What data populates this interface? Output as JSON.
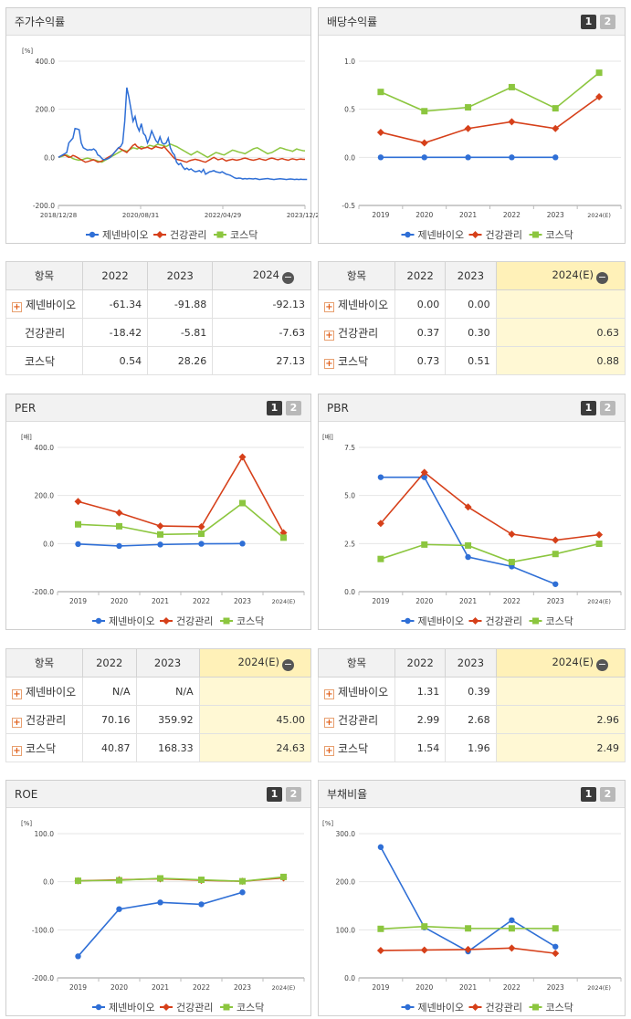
{
  "panels": {
    "stock": {
      "title": "주가수익률",
      "unit": "[%]"
    },
    "div": {
      "title": "배당수익률",
      "unit": ""
    },
    "per": {
      "title": "PER",
      "unit": "[배]"
    },
    "pbr": {
      "title": "PBR",
      "unit": "[배]"
    },
    "roe": {
      "title": "ROE",
      "unit": "[%]"
    },
    "debt": {
      "title": "부채비율",
      "unit": "[%]"
    }
  },
  "buttons": {
    "one": "1",
    "two": "2"
  },
  "legend": [
    "제넨바이오",
    "건강관리",
    "코스닥"
  ],
  "colors": {
    "blue": "#2f6fd6",
    "red": "#d6401a",
    "green": "#8cc63f"
  },
  "tables": {
    "stock": {
      "header": [
        "항목",
        "2022",
        "2023",
        "2024"
      ],
      "rows": [
        {
          "label": "제넨바이오",
          "plus": true,
          "values": [
            "-61.34",
            "-91.88",
            "-92.13"
          ]
        },
        {
          "label": "건강관리",
          "plus": false,
          "values": [
            "-18.42",
            "-5.81",
            "-7.63"
          ]
        },
        {
          "label": "코스닥",
          "plus": false,
          "values": [
            "0.54",
            "28.26",
            "27.13"
          ]
        }
      ]
    },
    "div": {
      "header": [
        "항목",
        "2022",
        "2023",
        "2024(E)"
      ],
      "rows": [
        {
          "label": "제넨바이오",
          "plus": true,
          "values": [
            "0.00",
            "0.00",
            ""
          ]
        },
        {
          "label": "건강관리",
          "plus": true,
          "values": [
            "0.37",
            "0.30",
            "0.63"
          ]
        },
        {
          "label": "코스닥",
          "plus": true,
          "values": [
            "0.73",
            "0.51",
            "0.88"
          ]
        }
      ]
    },
    "per": {
      "header": [
        "항목",
        "2022",
        "2023",
        "2024(E)"
      ],
      "rows": [
        {
          "label": "제넨바이오",
          "plus": true,
          "values": [
            "N/A",
            "N/A",
            ""
          ]
        },
        {
          "label": "건강관리",
          "plus": true,
          "values": [
            "70.16",
            "359.92",
            "45.00"
          ]
        },
        {
          "label": "코스닥",
          "plus": true,
          "values": [
            "40.87",
            "168.33",
            "24.63"
          ]
        }
      ]
    },
    "pbr": {
      "header": [
        "항목",
        "2022",
        "2023",
        "2024(E)"
      ],
      "rows": [
        {
          "label": "제넨바이오",
          "plus": true,
          "values": [
            "1.31",
            "0.39",
            ""
          ]
        },
        {
          "label": "건강관리",
          "plus": true,
          "values": [
            "2.99",
            "2.68",
            "2.96"
          ]
        },
        {
          "label": "코스닥",
          "plus": true,
          "values": [
            "1.54",
            "1.96",
            "2.49"
          ]
        }
      ]
    }
  },
  "chart_data": [
    {
      "id": "stock",
      "type": "line",
      "title": "주가수익률",
      "ylabel": "[%]",
      "ylim": [
        -200,
        400
      ],
      "yticks": [
        "400.0",
        "200.0",
        "0.0",
        "-200.0"
      ],
      "xticks": [
        "2018/12/28",
        "2020/08/31",
        "2022/04/29",
        "2023/12/28"
      ],
      "n": 120,
      "series": [
        {
          "name": "제넨바이오",
          "values": [
            0,
            5,
            10,
            15,
            20,
            60,
            70,
            80,
            120,
            118,
            115,
            60,
            40,
            35,
            30,
            32,
            31,
            35,
            28,
            10,
            5,
            -5,
            -10,
            -8,
            -5,
            0,
            10,
            20,
            30,
            40,
            45,
            60,
            150,
            290,
            250,
            200,
            150,
            170,
            130,
            110,
            140,
            100,
            90,
            60,
            80,
            110,
            90,
            70,
            60,
            85,
            60,
            55,
            60,
            80,
            40,
            20,
            10,
            -20,
            -30,
            -25,
            -40,
            -50,
            -45,
            -52,
            -48,
            -55,
            -60,
            -58,
            -55,
            -62,
            -50,
            -70,
            -65,
            -60,
            -58,
            -55,
            -60,
            -62,
            -64,
            -60,
            -65,
            -70,
            -72,
            -75,
            -80,
            -85,
            -88,
            -86,
            -87,
            -90,
            -88,
            -90,
            -88,
            -89,
            -90,
            -88,
            -90,
            -92,
            -91,
            -90,
            -89,
            -88,
            -90,
            -91,
            -92,
            -91,
            -90,
            -89,
            -90,
            -91,
            -92,
            -91,
            -90,
            -91,
            -92,
            -91,
            -92,
            -91,
            -92,
            -92,
            -92
          ]
        },
        {
          "name": "건강관리",
          "values": [
            0,
            5,
            8,
            10,
            5,
            0,
            2,
            8,
            5,
            0,
            -5,
            -10,
            -15,
            -20,
            -18,
            -15,
            -12,
            -10,
            -15,
            -20,
            -18,
            -15,
            -10,
            -5,
            0,
            5,
            10,
            20,
            30,
            40,
            35,
            30,
            25,
            20,
            30,
            40,
            50,
            55,
            45,
            40,
            35,
            38,
            40,
            42,
            38,
            35,
            40,
            45,
            42,
            40,
            38,
            45,
            35,
            25,
            15,
            5,
            -5,
            -8,
            -10,
            -12,
            -15,
            -18,
            -20,
            -15,
            -12,
            -10,
            -8,
            -10,
            -12,
            -15,
            -18,
            -20,
            -15,
            -10,
            -5,
            0,
            -5,
            -10,
            -8,
            -5,
            -10,
            -15,
            -12,
            -10,
            -8,
            -10,
            -12,
            -10,
            -8,
            -5,
            -3,
            -5,
            -8,
            -10,
            -12,
            -10,
            -8,
            -5,
            -8,
            -10,
            -12,
            -8,
            -5,
            -3,
            -5,
            -8,
            -10,
            -7,
            -5,
            -8,
            -10,
            -12,
            -8,
            -6,
            -8,
            -10,
            -8,
            -7,
            -8,
            -8
          ]
        },
        {
          "name": "코스닥",
          "values": [
            0,
            2,
            5,
            8,
            10,
            5,
            0,
            -5,
            -8,
            -10,
            -12,
            -10,
            -8,
            -5,
            -3,
            -5,
            -8,
            -10,
            -12,
            -15,
            -18,
            -20,
            -15,
            -10,
            -5,
            0,
            5,
            10,
            15,
            20,
            25,
            30,
            28,
            25,
            30,
            35,
            40,
            38,
            35,
            40,
            45,
            42,
            40,
            45,
            50,
            48,
            45,
            50,
            55,
            52,
            50,
            48,
            45,
            50,
            55,
            52,
            48,
            45,
            40,
            35,
            30,
            25,
            20,
            15,
            10,
            15,
            20,
            25,
            20,
            15,
            10,
            5,
            0,
            5,
            10,
            15,
            20,
            18,
            15,
            12,
            10,
            15,
            20,
            25,
            30,
            28,
            25,
            22,
            20,
            18,
            15,
            20,
            25,
            30,
            35,
            38,
            40,
            35,
            30,
            25,
            20,
            15,
            18,
            20,
            25,
            30,
            35,
            40,
            38,
            35,
            32,
            30,
            28,
            25,
            30,
            35,
            32,
            30,
            28,
            27
          ]
        }
      ]
    },
    {
      "id": "div",
      "type": "line",
      "title": "배당수익률",
      "ylim": [
        -0.5,
        1.0
      ],
      "yticks": [
        "1.0",
        "0.5",
        "0.0",
        "-0.5"
      ],
      "categories": [
        "2019",
        "2020",
        "2021",
        "2022",
        "2023",
        "2024(E)"
      ],
      "series": [
        {
          "name": "제넨바이오",
          "values": [
            0.0,
            0.0,
            0.0,
            0.0,
            0.0,
            null
          ]
        },
        {
          "name": "건강관리",
          "values": [
            0.26,
            0.15,
            0.3,
            0.37,
            0.3,
            0.63
          ]
        },
        {
          "name": "코스닥",
          "values": [
            0.68,
            0.48,
            0.52,
            0.73,
            0.51,
            0.88
          ]
        }
      ]
    },
    {
      "id": "per",
      "type": "line",
      "title": "PER",
      "ylabel": "[배]",
      "ylim": [
        -200,
        400
      ],
      "yticks": [
        "400.0",
        "200.0",
        "0.0",
        "-200.0"
      ],
      "categories": [
        "2019",
        "2020",
        "2021",
        "2022",
        "2023",
        "2024(E)"
      ],
      "series": [
        {
          "name": "제넨바이오",
          "values": [
            -2,
            -10,
            -4,
            -1,
            0,
            null
          ]
        },
        {
          "name": "건강관리",
          "values": [
            175,
            128,
            73,
            70.16,
            359.92,
            45
          ]
        },
        {
          "name": "코스닥",
          "values": [
            80,
            72,
            38,
            40.87,
            168.33,
            24.63
          ]
        }
      ]
    },
    {
      "id": "pbr",
      "type": "line",
      "title": "PBR",
      "ylabel": "[배]",
      "ylim": [
        0,
        7.5
      ],
      "yticks": [
        "7.5",
        "5.0",
        "2.5",
        "0.0"
      ],
      "categories": [
        "2019",
        "2020",
        "2021",
        "2022",
        "2023",
        "2024(E)"
      ],
      "series": [
        {
          "name": "제넨바이오",
          "values": [
            5.95,
            5.95,
            1.8,
            1.31,
            0.39,
            null
          ]
        },
        {
          "name": "건강관리",
          "values": [
            3.55,
            6.2,
            4.4,
            2.99,
            2.68,
            2.96
          ]
        },
        {
          "name": "코스닥",
          "values": [
            1.7,
            2.45,
            2.4,
            1.54,
            1.96,
            2.49
          ]
        }
      ]
    },
    {
      "id": "roe",
      "type": "line",
      "title": "ROE",
      "ylabel": "[%]",
      "ylim": [
        -200,
        100
      ],
      "yticks": [
        "100.0",
        "0.0",
        "-100.0",
        "-200.0"
      ],
      "categories": [
        "2019",
        "2020",
        "2021",
        "2022",
        "2023",
        "2024(E)"
      ],
      "series": [
        {
          "name": "제넨바이오",
          "values": [
            -155,
            -57,
            -43,
            -47,
            -22,
            null
          ]
        },
        {
          "name": "건강관리",
          "values": [
            2,
            4,
            6,
            3,
            1,
            8
          ]
        },
        {
          "name": "코스닥",
          "values": [
            2,
            3,
            7,
            4,
            1,
            10
          ]
        }
      ]
    },
    {
      "id": "debt",
      "type": "line",
      "title": "부채비율",
      "ylabel": "[%]",
      "ylim": [
        0,
        300
      ],
      "yticks": [
        "300.0",
        "200.0",
        "100.0",
        "0.0"
      ],
      "categories": [
        "2019",
        "2020",
        "2021",
        "2022",
        "2023",
        "2024(E)"
      ],
      "series": [
        {
          "name": "제넨바이오",
          "values": [
            272,
            105,
            55,
            120,
            65,
            null
          ]
        },
        {
          "name": "건강관리",
          "values": [
            57,
            58,
            59,
            62,
            51,
            null
          ]
        },
        {
          "name": "코스닥",
          "values": [
            102,
            107,
            103,
            103,
            103,
            null
          ]
        }
      ]
    }
  ]
}
